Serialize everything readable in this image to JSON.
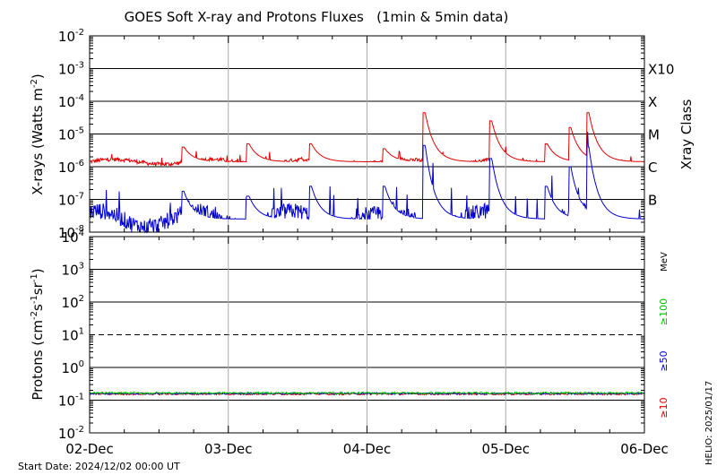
{
  "chart_data": {
    "type": "line",
    "title": "GOES Soft X-ray and Protons Fluxes   (1min & 5min data)",
    "start_date_label": "Start Date: 2024/12/02 00:00 UT",
    "helio_label": "HELIO: 2025/01/17",
    "x_categories": [
      "02-Dec",
      "03-Dec",
      "04-Dec",
      "05-Dec",
      "06-Dec"
    ],
    "xlim_days": [
      0,
      4
    ],
    "xray_panel": {
      "ylabel_main": "X-rays (Watts m",
      "ylabel_sup": "-2",
      "ylabel_end": ")",
      "scale": "log",
      "ylim_exp": [
        -8,
        -2
      ],
      "tick_exponents": [
        -2,
        -3,
        -4,
        -5,
        -6,
        -7,
        -8
      ],
      "tick_mantissa": "10",
      "gridlines_exp": [
        -3,
        -4,
        -5,
        -6,
        -7
      ],
      "class_title": "Xray Class",
      "classes": [
        {
          "label": "X10",
          "exp": -3
        },
        {
          "label": "X",
          "exp": -4
        },
        {
          "label": "M",
          "exp": -5
        },
        {
          "label": "C",
          "exp": -6
        },
        {
          "label": "B",
          "exp": -7
        }
      ],
      "series": [
        {
          "color": "#e00000",
          "baseline_exp": -5.85,
          "peaks": [
            {
              "day": 0.68,
              "exp": -5.4
            },
            {
              "day": 1.15,
              "exp": -5.3
            },
            {
              "day": 1.6,
              "exp": -5.3
            },
            {
              "day": 2.13,
              "exp": -5.45
            },
            {
              "day": 2.42,
              "exp": -4.35
            },
            {
              "day": 2.9,
              "exp": -4.6
            },
            {
              "day": 3.3,
              "exp": -5.3
            },
            {
              "day": 3.47,
              "exp": -4.8
            },
            {
              "day": 3.6,
              "exp": -4.35
            }
          ]
        },
        {
          "color": "#0000d0",
          "baseline_exp": -7.6,
          "peaks": [
            {
              "day": 0.68,
              "exp": -6.75
            },
            {
              "day": 1.15,
              "exp": -6.9
            },
            {
              "day": 1.6,
              "exp": -6.6
            },
            {
              "day": 2.13,
              "exp": -6.6
            },
            {
              "day": 2.42,
              "exp": -5.35
            },
            {
              "day": 2.9,
              "exp": -5.75
            },
            {
              "day": 3.3,
              "exp": -6.6
            },
            {
              "day": 3.47,
              "exp": -6.0
            },
            {
              "day": 3.6,
              "exp": -5.4
            }
          ]
        }
      ]
    },
    "proton_panel": {
      "ylabel_main": "Protons (cm",
      "ylabel_parts": [
        "-2",
        "s",
        "-1",
        "sr",
        "-1"
      ],
      "ylabel_end": ")",
      "scale": "log",
      "ylim_exp": [
        -2,
        4
      ],
      "tick_exponents": [
        4,
        3,
        2,
        1,
        0,
        -1,
        -2
      ],
      "tick_mantissa": "10",
      "gridlines_exp": [
        3,
        2,
        0,
        -1
      ],
      "dashed_line_exp": 1,
      "unit": "MeV",
      "energy_labels": [
        {
          "label": "≥100",
          "color": "#00c000"
        },
        {
          "label": "≥50",
          "color": "#0000d0"
        },
        {
          "label": "≥10",
          "color": "#e00000"
        }
      ],
      "series": [
        {
          "name": "≥10 MeV",
          "color": "#e00000",
          "value": 0.155
        },
        {
          "name": "≥50 MeV",
          "color": "#0000d0",
          "value": 0.16
        },
        {
          "name": "≥100 MeV",
          "color": "#00c000",
          "value": 0.165
        }
      ]
    }
  }
}
